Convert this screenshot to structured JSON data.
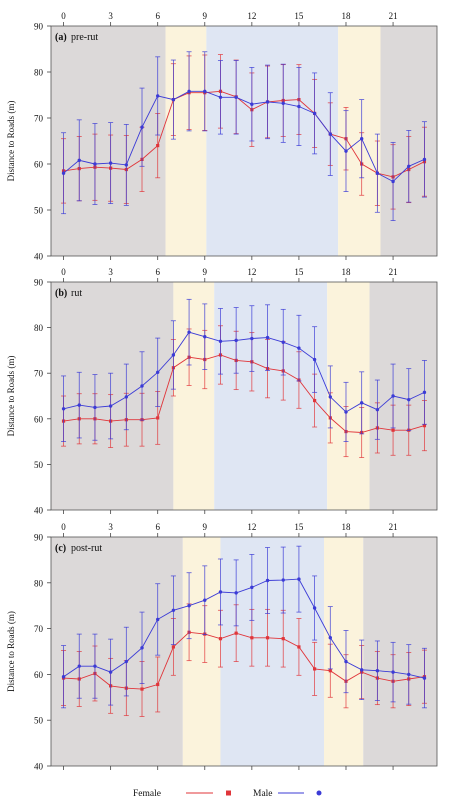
{
  "chart_data": [
    {
      "type": "line",
      "panel_label": "(a)",
      "panel_title": "pre-rut",
      "xlabel": "",
      "ylabel": "Distance to Roads (m)",
      "xlim": [
        -0.8,
        23.8
      ],
      "ylim": [
        40,
        90
      ],
      "xticks": [
        0,
        3,
        6,
        9,
        12,
        15,
        18,
        21
      ],
      "yticks": [
        40,
        50,
        60,
        70,
        80,
        90
      ],
      "shading": [
        {
          "from": -0.8,
          "to": 6.5,
          "color": "#dcd9d9"
        },
        {
          "from": 6.5,
          "to": 9.1,
          "color": "#fbf3dc"
        },
        {
          "from": 9.1,
          "to": 17.5,
          "color": "#dfe6f3"
        },
        {
          "from": 17.5,
          "to": 20.2,
          "color": "#fbf3dc"
        },
        {
          "from": 20.2,
          "to": 23.8,
          "color": "#dcd9d9"
        }
      ],
      "x": [
        0,
        1,
        2,
        3,
        4,
        5,
        6,
        7,
        8,
        9,
        10,
        11,
        12,
        13,
        14,
        15,
        16,
        17,
        18,
        19,
        20,
        21,
        22,
        23
      ],
      "series": [
        {
          "name": "Female",
          "color": "#e0353a",
          "marker": "square",
          "values": [
            58.5,
            59.0,
            59.3,
            59.1,
            58.8,
            61.0,
            64.0,
            74.0,
            75.5,
            75.5,
            75.8,
            74.6,
            71.8,
            73.5,
            73.8,
            74.0,
            71.0,
            66.5,
            65.5,
            60.0,
            58.0,
            57.2,
            58.8,
            60.5
          ],
          "errors": [
            7.0,
            7.0,
            7.2,
            7.2,
            7.4,
            7.0,
            7.0,
            7.8,
            8.0,
            8.2,
            8.0,
            8.0,
            8.0,
            7.8,
            7.8,
            7.6,
            7.4,
            6.8,
            6.8,
            6.8,
            7.0,
            7.0,
            7.2,
            7.5
          ]
        },
        {
          "name": "Male",
          "color": "#3b3bd6",
          "marker": "circle",
          "values": [
            58.0,
            60.8,
            60.0,
            60.2,
            59.8,
            68.0,
            74.8,
            74.0,
            75.8,
            75.8,
            74.5,
            74.5,
            73.0,
            73.5,
            73.2,
            72.5,
            71.0,
            66.5,
            62.8,
            65.5,
            58.0,
            56.2,
            59.5,
            61.0
          ],
          "errors": [
            8.8,
            8.8,
            8.8,
            8.8,
            8.8,
            8.5,
            8.5,
            8.6,
            8.6,
            8.6,
            8.0,
            8.0,
            8.0,
            8.0,
            8.5,
            8.5,
            8.8,
            9.0,
            8.8,
            8.5,
            8.5,
            8.5,
            7.8,
            8.2
          ]
        }
      ]
    },
    {
      "type": "line",
      "panel_label": "(b)",
      "panel_title": "rut",
      "xlabel": "",
      "ylabel": "Distance to Roads (m)",
      "xlim": [
        -0.8,
        23.8
      ],
      "ylim": [
        40,
        90
      ],
      "xticks": [
        0,
        3,
        6,
        9,
        12,
        15,
        18,
        21
      ],
      "yticks": [
        40,
        50,
        60,
        70,
        80,
        90
      ],
      "shading": [
        {
          "from": -0.8,
          "to": 7.0,
          "color": "#dcd9d9"
        },
        {
          "from": 7.0,
          "to": 9.6,
          "color": "#fbf3dc"
        },
        {
          "from": 9.6,
          "to": 16.8,
          "color": "#dfe6f3"
        },
        {
          "from": 16.8,
          "to": 19.5,
          "color": "#fbf3dc"
        },
        {
          "from": 19.5,
          "to": 23.8,
          "color": "#dcd9d9"
        }
      ],
      "x": [
        0,
        1,
        2,
        3,
        4,
        5,
        6,
        7,
        8,
        9,
        10,
        11,
        12,
        13,
        14,
        15,
        16,
        17,
        18,
        19,
        20,
        21,
        22,
        23
      ],
      "series": [
        {
          "name": "Female",
          "color": "#e0353a",
          "marker": "square",
          "values": [
            59.5,
            60.0,
            60.0,
            59.5,
            59.8,
            59.8,
            60.2,
            71.2,
            73.5,
            73.0,
            74.0,
            72.8,
            72.5,
            71.0,
            70.5,
            68.5,
            64.0,
            60.2,
            57.2,
            57.0,
            58.0,
            57.5,
            57.5,
            58.5
          ],
          "errors": [
            5.5,
            5.5,
            5.5,
            5.8,
            5.8,
            5.8,
            5.8,
            6.2,
            6.2,
            6.4,
            6.4,
            6.4,
            6.4,
            6.4,
            6.4,
            6.2,
            5.8,
            5.5,
            5.5,
            5.5,
            5.5,
            5.5,
            5.5,
            5.5
          ]
        },
        {
          "name": "Male",
          "color": "#3b3bd6",
          "marker": "circle",
          "values": [
            62.2,
            63.0,
            62.5,
            62.8,
            64.8,
            67.2,
            70.2,
            74.0,
            79.0,
            78.0,
            77.0,
            77.2,
            77.6,
            77.8,
            76.8,
            75.5,
            73.0,
            64.8,
            61.5,
            63.5,
            62.0,
            65.0,
            64.2,
            65.8
          ],
          "errors": [
            7.2,
            7.2,
            7.2,
            7.2,
            7.2,
            7.5,
            7.5,
            7.5,
            7.2,
            7.2,
            7.2,
            7.2,
            7.2,
            7.2,
            7.2,
            7.2,
            7.2,
            6.8,
            6.5,
            6.8,
            6.5,
            7.0,
            6.8,
            7.0
          ]
        }
      ]
    },
    {
      "type": "line",
      "panel_label": "(c)",
      "panel_title": "post-rut",
      "xlabel": "",
      "ylabel": "Distance to Roads (m)",
      "xlim": [
        -0.8,
        23.8
      ],
      "ylim": [
        40,
        90
      ],
      "xticks": [
        0,
        3,
        6,
        9,
        12,
        15,
        18,
        21
      ],
      "yticks": [
        40,
        50,
        60,
        70,
        80,
        90
      ],
      "shading": [
        {
          "from": -0.8,
          "to": 7.6,
          "color": "#dcd9d9"
        },
        {
          "from": 7.6,
          "to": 10.0,
          "color": "#fbf3dc"
        },
        {
          "from": 10.0,
          "to": 16.6,
          "color": "#dfe6f3"
        },
        {
          "from": 16.6,
          "to": 19.1,
          "color": "#fbf3dc"
        },
        {
          "from": 19.1,
          "to": 23.8,
          "color": "#dcd9d9"
        }
      ],
      "x": [
        0,
        1,
        2,
        3,
        4,
        5,
        6,
        7,
        8,
        9,
        10,
        11,
        12,
        13,
        14,
        15,
        16,
        17,
        18,
        19,
        20,
        21,
        22,
        23
      ],
      "series": [
        {
          "name": "Female",
          "color": "#e0353a",
          "marker": "square",
          "values": [
            59.2,
            59.0,
            60.2,
            57.5,
            57.0,
            56.8,
            57.8,
            66.0,
            69.2,
            68.8,
            67.8,
            69.0,
            68.0,
            68.0,
            67.8,
            66.0,
            61.2,
            60.8,
            58.5,
            60.5,
            59.2,
            58.5,
            59.0,
            59.5
          ],
          "errors": [
            6.0,
            6.0,
            6.0,
            6.0,
            6.0,
            6.0,
            6.0,
            6.2,
            6.2,
            6.2,
            6.2,
            6.2,
            6.2,
            6.2,
            6.2,
            6.2,
            5.8,
            5.8,
            5.8,
            5.8,
            5.8,
            5.8,
            5.8,
            5.8
          ]
        },
        {
          "name": "Male",
          "color": "#3b3bd6",
          "marker": "circle",
          "values": [
            59.5,
            61.8,
            61.8,
            60.5,
            62.8,
            65.8,
            72.0,
            74.0,
            75.0,
            76.2,
            78.0,
            77.8,
            79.0,
            80.5,
            80.6,
            80.8,
            74.5,
            68.0,
            62.8,
            61.0,
            60.8,
            60.5,
            60.0,
            59.2
          ],
          "errors": [
            6.8,
            7.0,
            7.0,
            7.2,
            7.5,
            7.8,
            7.8,
            7.5,
            7.2,
            7.5,
            7.2,
            7.2,
            7.2,
            7.2,
            7.2,
            7.2,
            7.0,
            6.8,
            6.8,
            6.5,
            6.5,
            6.5,
            6.5,
            6.5
          ]
        }
      ]
    }
  ],
  "legend": {
    "female_label": "Female",
    "male_label": "Male"
  }
}
